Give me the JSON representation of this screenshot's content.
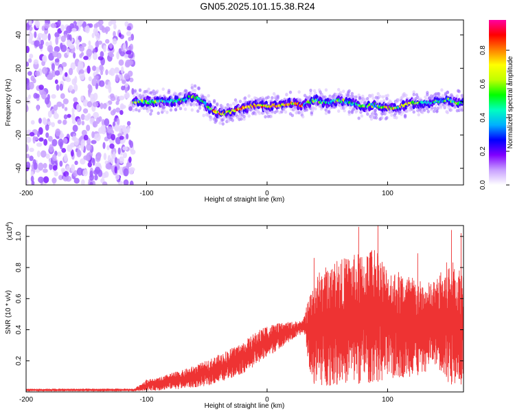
{
  "title": "GN05.2025.101.15.38.R24",
  "chart_data": [
    {
      "type": "heatmap",
      "title": "GN05.2025.101.15.38.R24",
      "xlabel": "Height of straight line (km)",
      "ylabel": "Frequency (Hz)",
      "xlim": [
        -200,
        163
      ],
      "ylim": [
        -50,
        49
      ],
      "xticks": [
        -200,
        -100,
        0,
        100
      ],
      "xtick_labels": [
        "-200",
        "-100",
        "0",
        "100"
      ],
      "yticks": [
        -40,
        -20,
        0,
        20,
        40
      ],
      "ytick_labels": [
        "-40",
        "-20",
        "0",
        "20",
        "40"
      ],
      "noise_region_x": [
        -200,
        -111
      ],
      "ridge": {
        "x": [
          -111,
          -100,
          -90,
          -80,
          -70,
          -62,
          -55,
          -48,
          -40,
          -35,
          -30,
          -20,
          -10,
          0,
          10,
          20,
          30,
          40,
          50,
          60,
          70,
          80,
          90,
          100,
          110,
          120,
          130,
          140,
          150,
          160,
          163
        ],
        "frequency_hz": [
          0,
          0,
          0,
          0,
          1,
          3,
          1,
          -4,
          -7,
          -7,
          -6,
          -4,
          -2,
          -3,
          -2,
          -1,
          -2,
          1,
          -1,
          1,
          -1,
          -3,
          -2,
          -4,
          -3,
          -1,
          -1,
          0,
          1,
          -1,
          0
        ]
      },
      "colorbar": {
        "label": "Normalized spectral amplitude",
        "range": [
          0,
          0.98
        ],
        "ticks": [
          0,
          0.2,
          0.4,
          0.6,
          0.8
        ],
        "tick_labels": [
          "0.0",
          "0.2",
          "0.4",
          "0.6",
          "0.8"
        ],
        "colors": [
          "#ffffff",
          "#c8a0ff",
          "#8000ff",
          "#0000ff",
          "#00b0ff",
          "#00ffc0",
          "#00ff00",
          "#c0ff00",
          "#ffff00",
          "#ff8000",
          "#ff0000",
          "#ff00a0"
        ]
      },
      "grid": false
    },
    {
      "type": "line",
      "xlabel": "Height of straight line (km)",
      "ylabel": "SNR (10 * v/v)",
      "yscale_label": "(x10",
      "yscale_exponent": "4",
      "yscale_suffix": ")",
      "xlim": [
        -200,
        163
      ],
      "ylim": [
        0,
        1.07
      ],
      "xticks": [
        -200,
        -100,
        0,
        100
      ],
      "xtick_labels": [
        "-200",
        "-100",
        "0",
        "100"
      ],
      "yticks": [
        0.2,
        0.4,
        0.6,
        0.8,
        1.0
      ],
      "ytick_labels": [
        "0.2",
        "0.4",
        "0.6",
        "0.8",
        "1.0"
      ],
      "series": [
        {
          "color": "#ee3333",
          "envelope": {
            "x": [
              -200,
              -110,
              -100,
              -90,
              -80,
              -70,
              -60,
              -50,
              -40,
              -30,
              -20,
              -10,
              0,
              10,
              20,
              30,
              31,
              35,
              40,
              50,
              60,
              70,
              80,
              90,
              100,
              110,
              120,
              130,
              140,
              150,
              163
            ],
            "low": [
              0.005,
              0.005,
              0.01,
              0.01,
              0.02,
              0.02,
              0.03,
              0.04,
              0.06,
              0.09,
              0.12,
              0.17,
              0.22,
              0.28,
              0.33,
              0.38,
              0.38,
              0.15,
              0.03,
              0.04,
              0.05,
              0.06,
              0.05,
              0.07,
              0.06,
              0.09,
              0.1,
              0.12,
              0.18,
              0.05,
              0.05
            ],
            "high": [
              0.02,
              0.02,
              0.08,
              0.09,
              0.12,
              0.14,
              0.17,
              0.2,
              0.24,
              0.28,
              0.32,
              0.38,
              0.43,
              0.44,
              0.45,
              0.46,
              0.5,
              0.62,
              0.75,
              0.82,
              0.85,
              0.88,
              0.9,
              0.95,
              0.8,
              0.78,
              0.75,
              0.7,
              0.72,
              0.85,
              0.8
            ]
          },
          "peaks": [
            [
              39,
              0.86
            ],
            [
              58,
              0.84
            ],
            [
              76,
              1.06
            ],
            [
              85,
              0.86
            ],
            [
              92,
              1.07
            ],
            [
              125,
              0.89
            ],
            [
              153,
              1.04
            ],
            [
              161,
              1.02
            ]
          ]
        }
      ],
      "grid": false
    }
  ]
}
